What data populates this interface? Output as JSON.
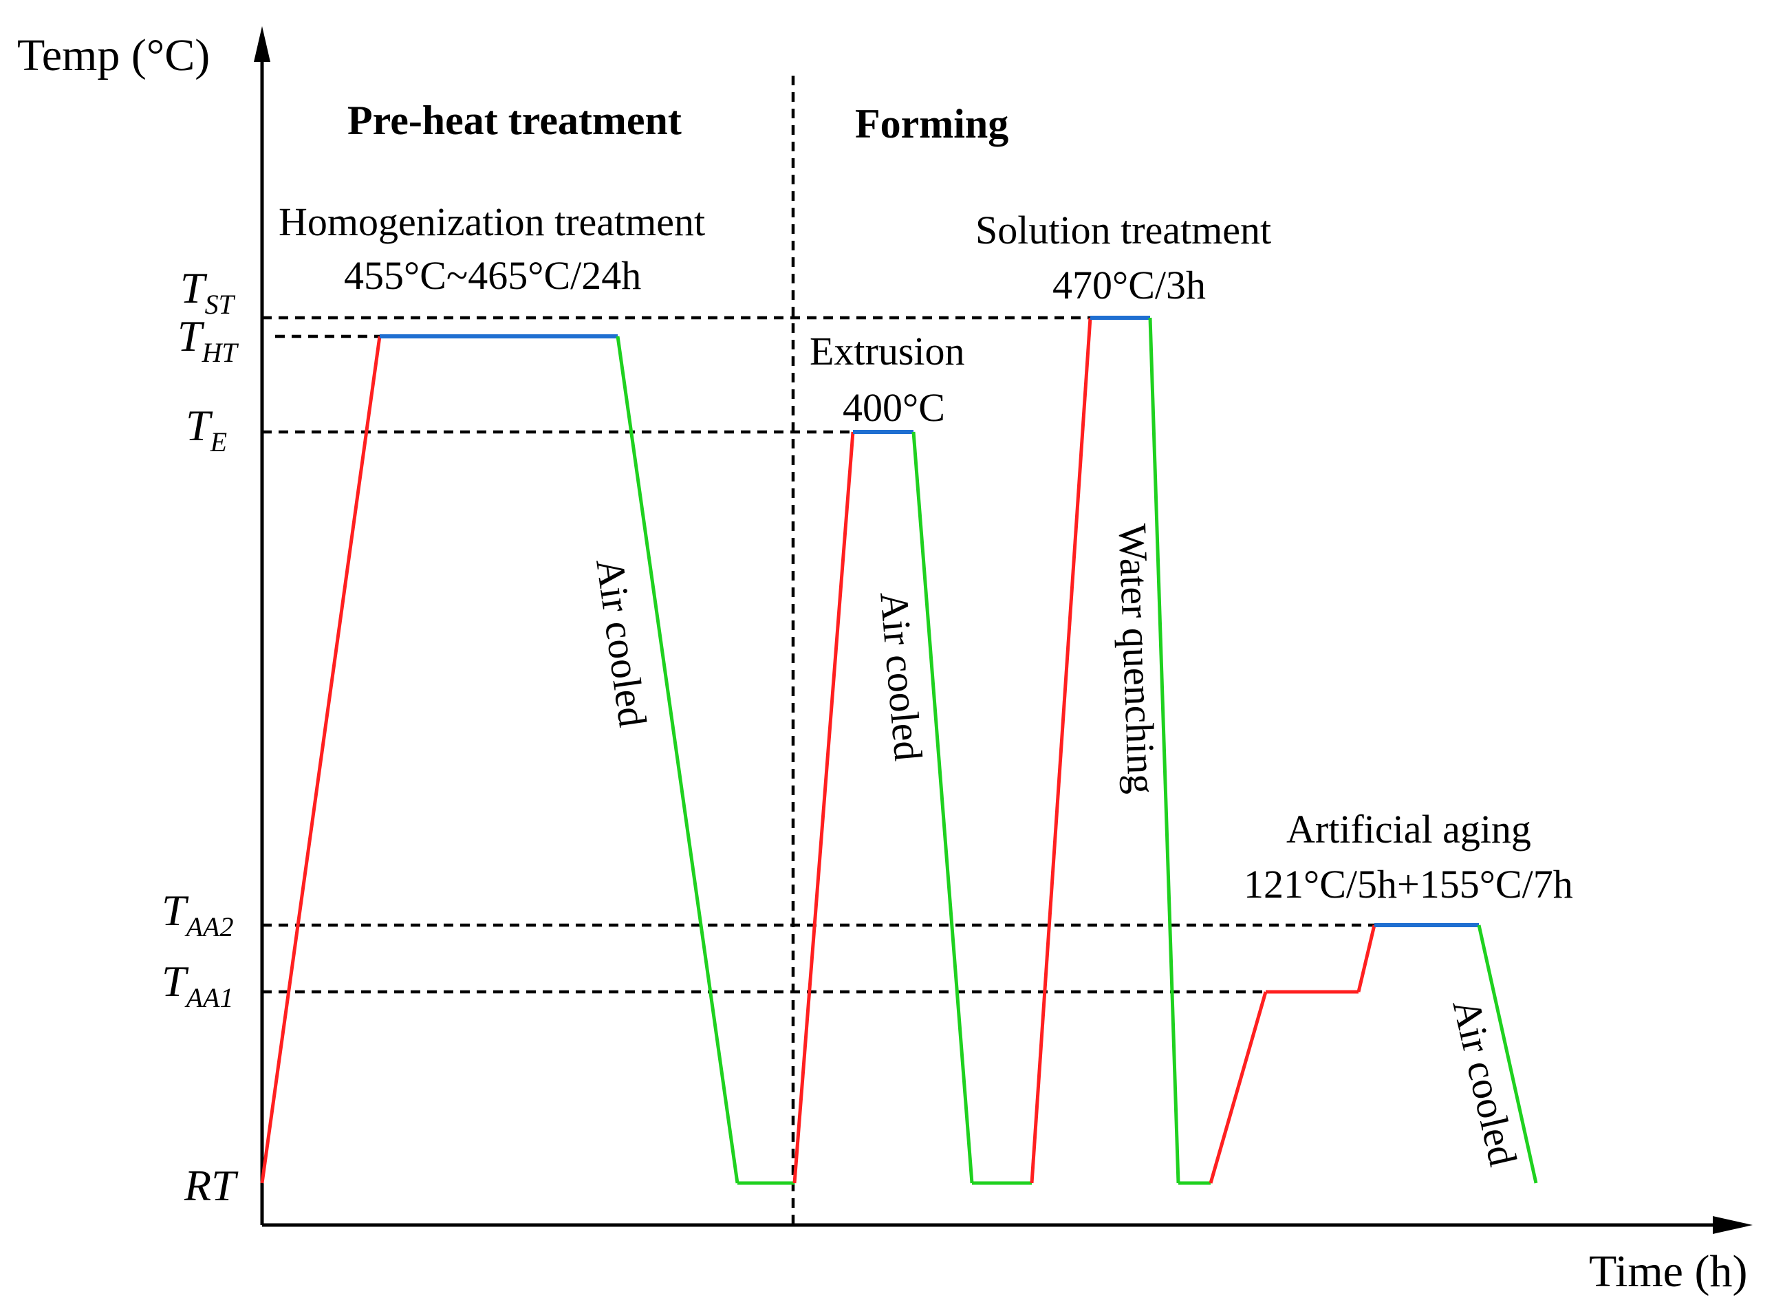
{
  "axes": {
    "y_title": "Temp (°C)",
    "x_title": "Time (h)"
  },
  "phases": {
    "preheat": "Pre-heat treatment",
    "forming": "Forming"
  },
  "levels": [
    {
      "id": "ST",
      "base": "T",
      "sub": "ST"
    },
    {
      "id": "HT",
      "base": "T",
      "sub": "HT"
    },
    {
      "id": "E",
      "base": "T",
      "sub": "E"
    },
    {
      "id": "AA2",
      "base": "T",
      "sub": "AA2"
    },
    {
      "id": "AA1",
      "base": "T",
      "sub": "AA1"
    },
    {
      "id": "RT",
      "base": "RT",
      "sub": ""
    }
  ],
  "labels": {
    "homogenization_title": "Homogenization treatment",
    "homogenization_cond": "455°C~465°C/24h",
    "solution_title": "Solution treatment",
    "solution_cond": "470°C/3h",
    "extrusion_title": "Extrusion",
    "extrusion_cond": "400°C",
    "aging_title": "Artificial aging",
    "aging_cond": "121°C/5h+155°C/7h",
    "air_cooled_1": "Air cooled",
    "air_cooled_2": "Air cooled",
    "water_quenching": "Water quenching",
    "air_cooled_3": "Air cooled"
  },
  "colors": {
    "heating": "#ff2020",
    "holding": "#1f6fd1",
    "cooling": "#1fd11f"
  }
}
